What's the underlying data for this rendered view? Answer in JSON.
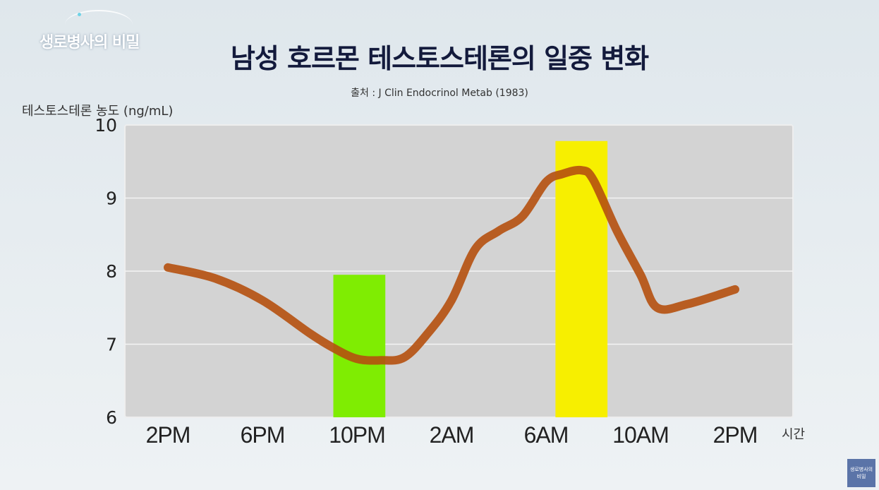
{
  "logo": {
    "text": "생로병사의 비밀"
  },
  "watermark": {
    "text": "생로병사의 비밀"
  },
  "chart_data": {
    "type": "line",
    "title": "남성 호르몬 테스토스테론의 일중 변화",
    "subtitle": "출처 : J Clin Endocrinol Metab (1983)",
    "ylabel": "테스토스테론 농도 (ng/mL)",
    "xlabel": "시간",
    "ylim": [
      6,
      10
    ],
    "yticks": [
      6,
      7,
      8,
      9,
      10
    ],
    "xticks": [
      "2PM",
      "6PM",
      "10PM",
      "2AM",
      "6AM",
      "10AM",
      "2PM"
    ],
    "grid": true,
    "x_hours": [
      0,
      2,
      4,
      6,
      7,
      8,
      9,
      10,
      11,
      12,
      13,
      14,
      15,
      16,
      16.7,
      17.5,
      18,
      19,
      20,
      20.7,
      22,
      24
    ],
    "values": [
      8.05,
      7.9,
      7.6,
      7.15,
      6.95,
      6.8,
      6.78,
      6.82,
      7.15,
      7.6,
      8.3,
      8.55,
      8.75,
      9.22,
      9.33,
      9.38,
      9.25,
      8.55,
      7.95,
      7.5,
      7.55,
      7.75
    ],
    "highlights": [
      {
        "x_range": [
          7.0,
          9.2
        ],
        "ymax": 7.95,
        "color": "#7fed02"
      },
      {
        "x_range": [
          16.4,
          18.6
        ],
        "ymax": 9.78,
        "color": "#f7ef00"
      }
    ],
    "line_color": "#b5500e"
  }
}
